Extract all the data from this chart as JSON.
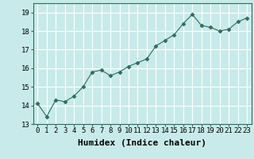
{
  "x": [
    0,
    1,
    2,
    3,
    4,
    5,
    6,
    7,
    8,
    9,
    10,
    11,
    12,
    13,
    14,
    15,
    16,
    17,
    18,
    19,
    20,
    21,
    22,
    23
  ],
  "y": [
    14.1,
    13.4,
    14.3,
    14.2,
    14.5,
    15.0,
    15.8,
    15.9,
    15.6,
    15.8,
    16.1,
    16.3,
    16.5,
    17.2,
    17.5,
    17.8,
    18.4,
    18.9,
    18.3,
    18.2,
    18.0,
    18.1,
    18.5,
    18.7
  ],
  "line_color": "#2e6b5e",
  "marker": "D",
  "marker_size": 2.5,
  "bg_color": "#c8eaea",
  "grid_color": "#ffffff",
  "xlabel": "Humidex (Indice chaleur)",
  "xlabel_fontsize": 8,
  "ylim": [
    13,
    19.5
  ],
  "xlim": [
    -0.5,
    23.5
  ],
  "yticks": [
    13,
    14,
    15,
    16,
    17,
    18,
    19
  ],
  "xticks": [
    0,
    1,
    2,
    3,
    4,
    5,
    6,
    7,
    8,
    9,
    10,
    11,
    12,
    13,
    14,
    15,
    16,
    17,
    18,
    19,
    20,
    21,
    22,
    23
  ],
  "tick_fontsize": 6.5
}
